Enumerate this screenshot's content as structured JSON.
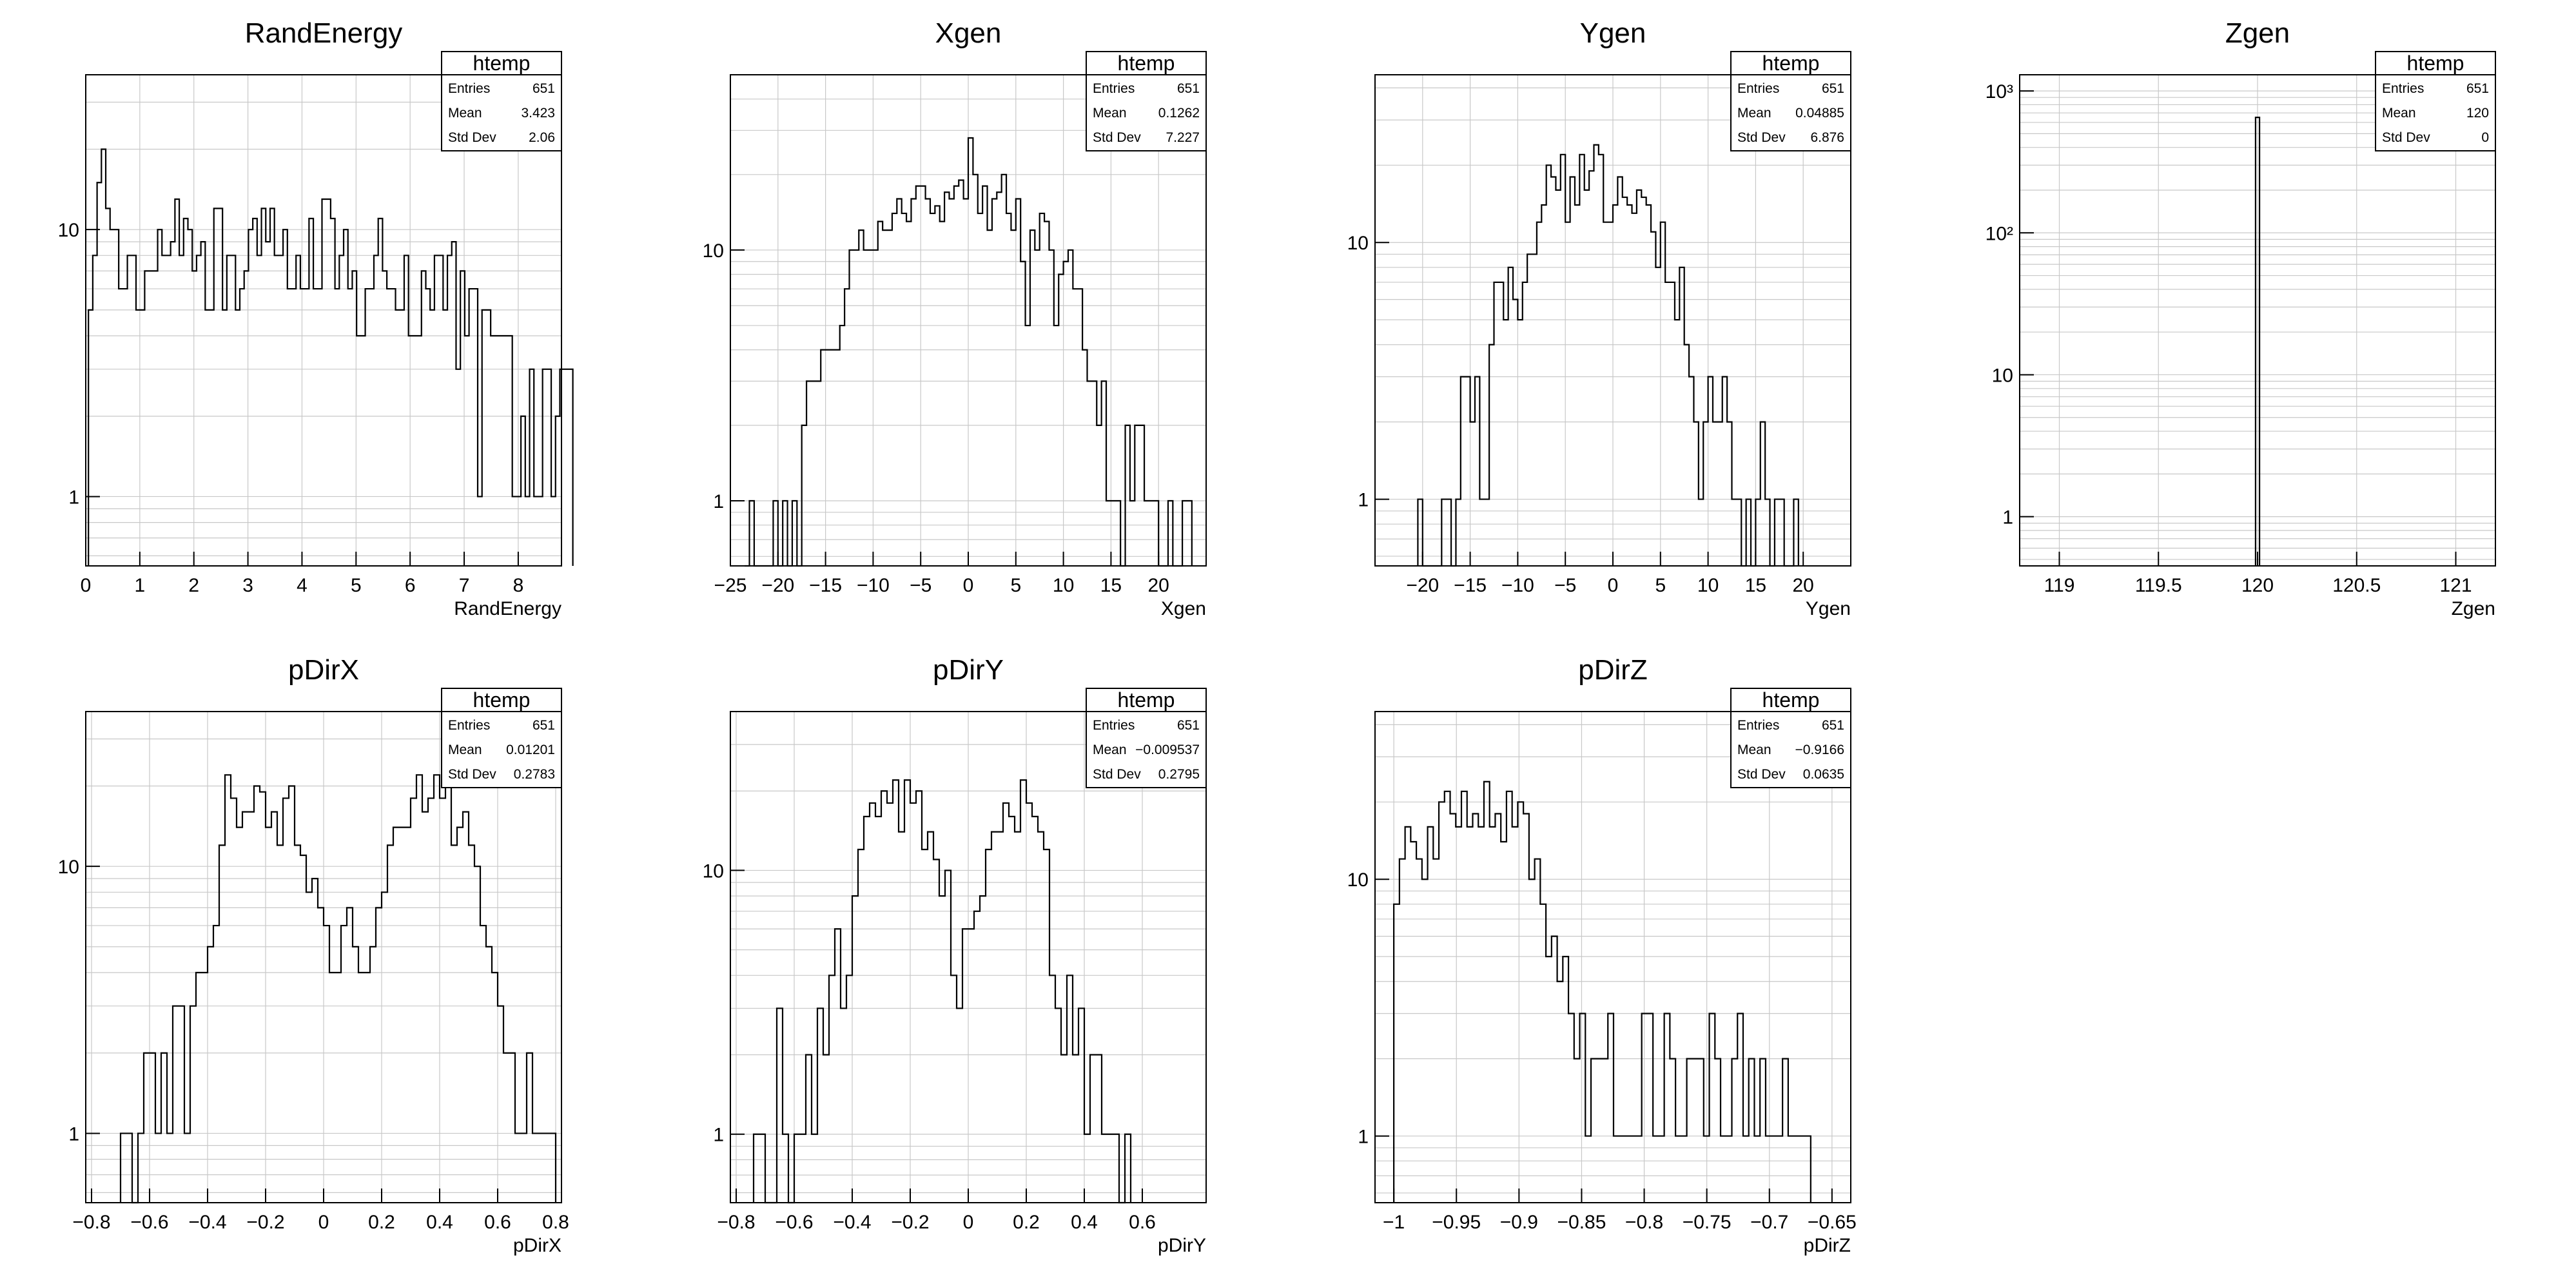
{
  "chart_data": [
    {
      "type": "histogram",
      "title": "RandEnergy",
      "xlabel": "RandEnergy",
      "ylabel": "",
      "xlim": [
        0,
        8.8
      ],
      "ylim": [
        0.55,
        38
      ],
      "yscale": "log",
      "grid": true,
      "xticks": [
        {
          "v": 0,
          "l": "0"
        },
        {
          "v": 1,
          "l": "1"
        },
        {
          "v": 2,
          "l": "2"
        },
        {
          "v": 3,
          "l": "3"
        },
        {
          "v": 4,
          "l": "4"
        },
        {
          "v": 5,
          "l": "5"
        },
        {
          "v": 6,
          "l": "6"
        },
        {
          "v": 7,
          "l": "7"
        },
        {
          "v": 8,
          "l": "8"
        }
      ],
      "yticks": [
        {
          "v": 1,
          "l": "1"
        },
        {
          "v": 10,
          "l": "10"
        }
      ],
      "bin_start": 0.05,
      "bin_width": 0.08,
      "counts": [
        5,
        8,
        15,
        20,
        12,
        10,
        10,
        6,
        6,
        8,
        8,
        5,
        5,
        7,
        7,
        7,
        10,
        8,
        8,
        9,
        13,
        8,
        11,
        10,
        7,
        8,
        9,
        5,
        5,
        12,
        12,
        5,
        8,
        8,
        5,
        6,
        7,
        10,
        11,
        8,
        12,
        9,
        12,
        8,
        8,
        10,
        6,
        6,
        8,
        6,
        6,
        11,
        6,
        6,
        13,
        13,
        11,
        6,
        8,
        10,
        6,
        7,
        4,
        4,
        6,
        6,
        8,
        11,
        7,
        6,
        6,
        5,
        5,
        8,
        4,
        4,
        4,
        7,
        6,
        5,
        8,
        8,
        5,
        8,
        9,
        3,
        7,
        4,
        6,
        6,
        1,
        5,
        5,
        4,
        4,
        4,
        4,
        4,
        1,
        1,
        2,
        1,
        3,
        1,
        1,
        3,
        3,
        1,
        2,
        3,
        3,
        3
      ],
      "stats": {
        "title": "htemp",
        "rows": [
          {
            "k": "Entries",
            "v": "651"
          },
          {
            "k": "Mean",
            "v": "3.423"
          },
          {
            "k": "Std Dev",
            "v": "2.06"
          }
        ]
      }
    },
    {
      "type": "histogram",
      "title": "Xgen",
      "xlabel": "Xgen",
      "ylabel": "",
      "xlim": [
        -25,
        25
      ],
      "ylim": [
        0.55,
        50
      ],
      "yscale": "log",
      "grid": true,
      "xticks": [
        {
          "v": -25,
          "l": "−25"
        },
        {
          "v": -20,
          "l": "−20"
        },
        {
          "v": -15,
          "l": "−15"
        },
        {
          "v": -10,
          "l": "−10"
        },
        {
          "v": -5,
          "l": "−5"
        },
        {
          "v": 0,
          "l": "0"
        },
        {
          "v": 5,
          "l": "5"
        },
        {
          "v": 10,
          "l": "10"
        },
        {
          "v": 15,
          "l": "15"
        },
        {
          "v": 20,
          "l": "20"
        }
      ],
      "yticks": [
        {
          "v": 1,
          "l": "1"
        },
        {
          "v": 10,
          "l": "10"
        }
      ],
      "bin_start": -23.5,
      "bin_width": 0.5,
      "counts": [
        0,
        1,
        0,
        0,
        0,
        0,
        1,
        0,
        1,
        0,
        1,
        0,
        2,
        3,
        3,
        3,
        4,
        4,
        4,
        4,
        5,
        7,
        10,
        10,
        12,
        10,
        10,
        10,
        13,
        12,
        12,
        14,
        16,
        14,
        13,
        16,
        18,
        18,
        16,
        14,
        15,
        13,
        17,
        16,
        18,
        19,
        16,
        28,
        20,
        14,
        18,
        12,
        16,
        17,
        20,
        14,
        12,
        16,
        9,
        5,
        12,
        10,
        14,
        13,
        10,
        5,
        8,
        9,
        10,
        7,
        7,
        4,
        3,
        3,
        2,
        3,
        1,
        1,
        1,
        0,
        2,
        1,
        2,
        2,
        1,
        1,
        1,
        0,
        0,
        1,
        0,
        0,
        1,
        1
      ],
      "stats": {
        "title": "htemp",
        "rows": [
          {
            "k": "Entries",
            "v": "651"
          },
          {
            "k": "Mean",
            "v": "0.1262"
          },
          {
            "k": "Std Dev",
            "v": "7.227"
          }
        ]
      }
    },
    {
      "type": "histogram",
      "title": "Ygen",
      "xlabel": "Ygen",
      "ylabel": "",
      "xlim": [
        -25,
        25
      ],
      "ylim": [
        0.55,
        45
      ],
      "yscale": "log",
      "grid": true,
      "xticks": [
        {
          "v": -20,
          "l": "−20"
        },
        {
          "v": -15,
          "l": "−15"
        },
        {
          "v": -10,
          "l": "−10"
        },
        {
          "v": -5,
          "l": "−5"
        },
        {
          "v": 0,
          "l": "0"
        },
        {
          "v": 5,
          "l": "5"
        },
        {
          "v": 10,
          "l": "10"
        },
        {
          "v": 15,
          "l": "15"
        },
        {
          "v": 20,
          "l": "20"
        }
      ],
      "yticks": [
        {
          "v": 1,
          "l": "1"
        },
        {
          "v": 10,
          "l": "10"
        }
      ],
      "bin_start": -20.5,
      "bin_width": 0.5,
      "counts": [
        1,
        0,
        0,
        0,
        0,
        1,
        1,
        0,
        1,
        3,
        3,
        2,
        3,
        1,
        1,
        4,
        7,
        7,
        5,
        8,
        6,
        5,
        7,
        9,
        9,
        12,
        14,
        20,
        18,
        16,
        22,
        12,
        18,
        14,
        22,
        16,
        19,
        24,
        22,
        12,
        12,
        14,
        18,
        15,
        14,
        13,
        16,
        15,
        14,
        11,
        8,
        12,
        7,
        7,
        5,
        8,
        4,
        3,
        2,
        1,
        2,
        3,
        2,
        2,
        3,
        2,
        1,
        1,
        0,
        1,
        0,
        1,
        2,
        1,
        0,
        1,
        1,
        0,
        0,
        1
      ],
      "stats": {
        "title": "htemp",
        "rows": [
          {
            "k": "Entries",
            "v": "651"
          },
          {
            "k": "Mean",
            "v": "0.04885"
          },
          {
            "k": "Std Dev",
            "v": "6.876"
          }
        ]
      }
    },
    {
      "type": "histogram",
      "title": "Zgen",
      "xlabel": "Zgen",
      "ylabel": "",
      "xlim": [
        118.8,
        121.2
      ],
      "ylim": [
        0.45,
        1300
      ],
      "yscale": "log",
      "grid": true,
      "xticks": [
        {
          "v": 119,
          "l": "119"
        },
        {
          "v": 119.5,
          "l": "119.5"
        },
        {
          "v": 120,
          "l": "120"
        },
        {
          "v": 120.5,
          "l": "120.5"
        },
        {
          "v": 121,
          "l": "121"
        }
      ],
      "yticks": [
        {
          "v": 1,
          "l": "1"
        },
        {
          "v": 10,
          "l": "10"
        },
        {
          "v": 100,
          "l": "10²"
        },
        {
          "v": 1000,
          "l": "10³"
        }
      ],
      "bin_start": 119.99,
      "bin_width": 0.02,
      "counts": [
        651
      ],
      "stats": {
        "title": "htemp",
        "rows": [
          {
            "k": "Entries",
            "v": "651"
          },
          {
            "k": "Mean",
            "v": "120"
          },
          {
            "k": "Std Dev",
            "v": "0"
          }
        ]
      }
    },
    {
      "type": "histogram",
      "title": "pDirX",
      "xlabel": "pDirX",
      "ylabel": "",
      "xlim": [
        -0.82,
        0.82
      ],
      "ylim": [
        0.55,
        38
      ],
      "yscale": "log",
      "grid": true,
      "xticks": [
        {
          "v": -0.8,
          "l": "−0.8"
        },
        {
          "v": -0.6,
          "l": "−0.6"
        },
        {
          "v": -0.4,
          "l": "−0.4"
        },
        {
          "v": -0.2,
          "l": "−0.2"
        },
        {
          "v": 0,
          "l": "0"
        },
        {
          "v": 0.2,
          "l": "0.2"
        },
        {
          "v": 0.4,
          "l": "0.4"
        },
        {
          "v": 0.6,
          "l": "0.6"
        },
        {
          "v": 0.8,
          "l": "0.8"
        }
      ],
      "yticks": [
        {
          "v": 1,
          "l": "1"
        },
        {
          "v": 10,
          "l": "10"
        }
      ],
      "bin_start": -0.7,
      "bin_width": 0.02,
      "counts": [
        1,
        1,
        0,
        1,
        2,
        2,
        1,
        2,
        1,
        3,
        3,
        1,
        3,
        4,
        4,
        5,
        6,
        12,
        22,
        18,
        14,
        16,
        16,
        20,
        19,
        14,
        16,
        12,
        18,
        20,
        12,
        11,
        8,
        9,
        7,
        6,
        4,
        4,
        6,
        7,
        5,
        4,
        4,
        5,
        7,
        8,
        12,
        14,
        14,
        14,
        18,
        22,
        16,
        18,
        22,
        18,
        20,
        12,
        14,
        16,
        12,
        10,
        6,
        5,
        4,
        3,
        2,
        2,
        1,
        1,
        2,
        1,
        1,
        1,
        1
      ],
      "stats": {
        "title": "htemp",
        "rows": [
          {
            "k": "Entries",
            "v": "651"
          },
          {
            "k": "Mean",
            "v": "0.01201"
          },
          {
            "k": "Std Dev",
            "v": "0.2783"
          }
        ]
      }
    },
    {
      "type": "histogram",
      "title": "pDirY",
      "xlabel": "pDirY",
      "ylabel": "",
      "xlim": [
        -0.82,
        0.82
      ],
      "ylim": [
        0.55,
        40
      ],
      "yscale": "log",
      "grid": true,
      "xticks": [
        {
          "v": -0.8,
          "l": "−0.8"
        },
        {
          "v": -0.6,
          "l": "−0.6"
        },
        {
          "v": -0.4,
          "l": "−0.4"
        },
        {
          "v": -0.2,
          "l": "−0.2"
        },
        {
          "v": 0,
          "l": "0"
        },
        {
          "v": 0.2,
          "l": "0.2"
        },
        {
          "v": 0.4,
          "l": "0.4"
        },
        {
          "v": 0.6,
          "l": "0.6"
        }
      ],
      "yticks": [
        {
          "v": 1,
          "l": "1"
        },
        {
          "v": 10,
          "l": "10"
        }
      ],
      "bin_start": -0.74,
      "bin_width": 0.02,
      "counts": [
        1,
        1,
        0,
        0,
        3,
        1,
        0,
        1,
        1,
        2,
        1,
        3,
        2,
        4,
        6,
        3,
        4,
        8,
        12,
        16,
        18,
        16,
        20,
        18,
        22,
        14,
        22,
        18,
        20,
        12,
        14,
        11,
        8,
        10,
        4,
        3,
        6,
        6,
        7,
        8,
        12,
        14,
        14,
        18,
        16,
        14,
        22,
        18,
        16,
        14,
        12,
        4,
        3,
        2,
        4,
        2,
        3,
        1,
        2,
        2,
        1,
        1,
        1,
        0,
        1
      ],
      "stats": {
        "title": "htemp",
        "rows": [
          {
            "k": "Entries",
            "v": "651"
          },
          {
            "k": "Mean",
            "v": "−0.009537"
          },
          {
            "k": "Std Dev",
            "v": "0.2795"
          }
        ]
      }
    },
    {
      "type": "histogram",
      "title": "pDirZ",
      "xlabel": "pDirZ",
      "ylabel": "",
      "xlim": [
        -1.015,
        -0.635
      ],
      "ylim": [
        0.55,
        45
      ],
      "yscale": "log",
      "grid": true,
      "xticks": [
        {
          "v": -1,
          "l": "−1"
        },
        {
          "v": -0.95,
          "l": "−0.95"
        },
        {
          "v": -0.9,
          "l": "−0.9"
        },
        {
          "v": -0.85,
          "l": "−0.85"
        },
        {
          "v": -0.8,
          "l": "−0.8"
        },
        {
          "v": -0.75,
          "l": "−0.75"
        },
        {
          "v": -0.7,
          "l": "−0.7"
        },
        {
          "v": -0.65,
          "l": "−0.65"
        }
      ],
      "yticks": [
        {
          "v": 1,
          "l": "1"
        },
        {
          "v": 10,
          "l": "10"
        }
      ],
      "bin_start": -1.0,
      "bin_width": 0.0045,
      "counts": [
        8,
        12,
        16,
        14,
        12,
        10,
        16,
        12,
        20,
        22,
        18,
        16,
        22,
        16,
        18,
        16,
        24,
        16,
        18,
        14,
        22,
        16,
        20,
        18,
        10,
        12,
        8,
        5,
        6,
        4,
        5,
        3,
        2,
        3,
        1,
        2,
        2,
        2,
        3,
        1,
        1,
        1,
        1,
        1,
        3,
        3,
        1,
        1,
        3,
        2,
        1,
        1,
        2,
        2,
        2,
        1,
        3,
        2,
        1,
        1,
        2,
        3,
        1,
        2,
        1,
        2,
        1,
        1,
        1,
        2,
        1,
        1,
        1,
        1
      ],
      "stats": {
        "title": "htemp",
        "rows": [
          {
            "k": "Entries",
            "v": "651"
          },
          {
            "k": "Mean",
            "v": "−0.9166"
          },
          {
            "k": "Std Dev",
            "v": "0.0635"
          }
        ]
      }
    }
  ]
}
